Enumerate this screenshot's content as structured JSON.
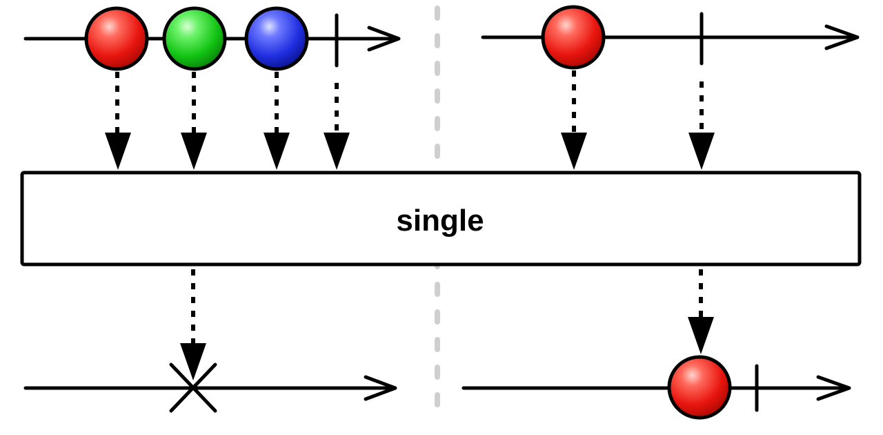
{
  "operator": {
    "label": "single"
  },
  "colors": {
    "red": "#e8150f",
    "green": "#13c414",
    "blue": "#1f2fe0",
    "divider": "#cfcfcf"
  },
  "left_case": {
    "input_marbles": [
      "red",
      "green",
      "blue"
    ],
    "input_terminates": true,
    "output": "error"
  },
  "right_case": {
    "input_marbles": [
      "red"
    ],
    "input_terminates": true,
    "output_marbles": [
      "red"
    ],
    "output_terminates": true
  }
}
